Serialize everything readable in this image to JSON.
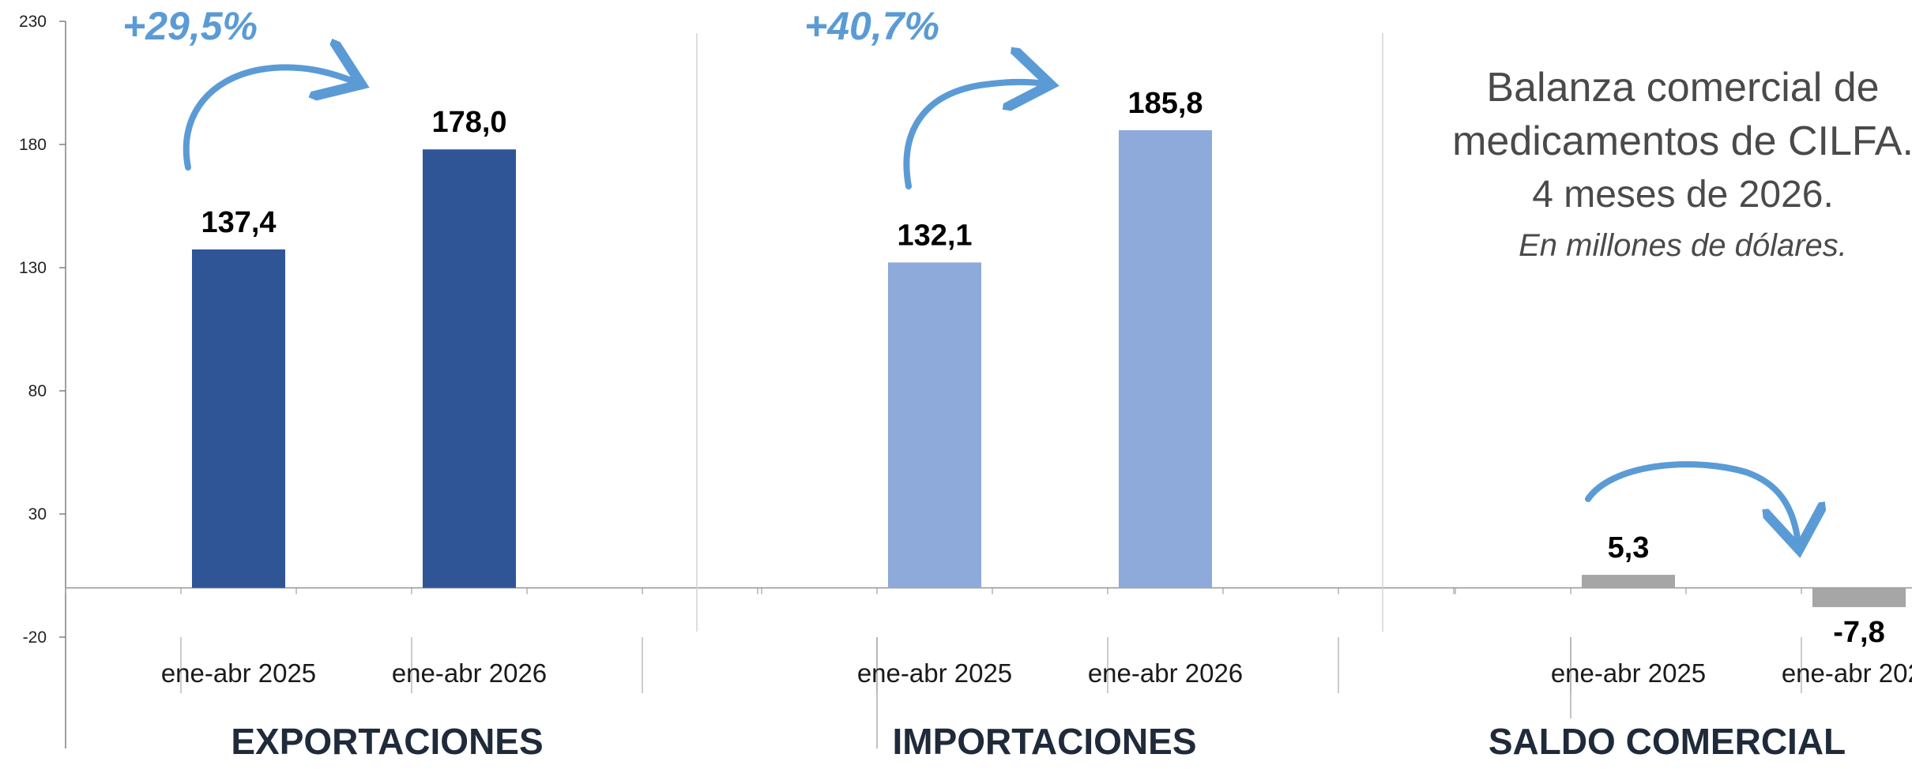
{
  "chart_data": {
    "type": "bar",
    "title": "Balanza comercial de medicamentos de CILFA.",
    "subtitle": "4 meses de 2026.",
    "note": "En millones de dólares.",
    "ylim": [
      -20,
      230
    ],
    "yticks": [
      -20,
      30,
      80,
      130,
      180,
      230
    ],
    "grid": false,
    "categories": [
      "ene-abr 2025",
      "ene-abr 2026"
    ],
    "groups": [
      {
        "name": "EXPORTACIONES",
        "color": "#2f5597",
        "values": [
          137.4,
          178.0
        ],
        "value_labels": [
          "137,4",
          "178,0"
        ],
        "growth_label": "+29,5%"
      },
      {
        "name": "IMPORTACIONES",
        "color": "#8eaadb",
        "values": [
          132.1,
          185.8
        ],
        "value_labels": [
          "132,1",
          "185,8"
        ],
        "growth_label": "+40,7%"
      },
      {
        "name": "SALDO COMERCIAL",
        "color": "#a6a6a6",
        "values": [
          5.3,
          -7.8
        ],
        "value_labels": [
          "5,3",
          "-7,8"
        ],
        "growth_label": ""
      }
    ],
    "arrow_color": "#5b9bd5"
  }
}
